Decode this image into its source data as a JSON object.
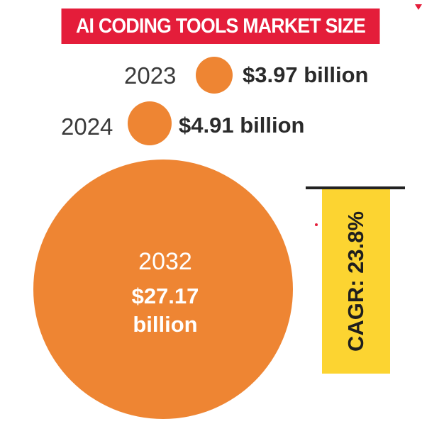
{
  "title": "AI CODING TOOLS MARKET SIZE",
  "chart_data": {
    "type": "bubble",
    "title": "AI CODING TOOLS MARKET SIZE",
    "points": [
      {
        "year": "2023",
        "value": 3.97,
        "label": "$3.97 billion"
      },
      {
        "year": "2024",
        "value": 4.91,
        "label": "$4.91 billion"
      },
      {
        "year": "2032",
        "value": 27.17,
        "label_line1": "$27.17",
        "label_line2": "billion"
      }
    ],
    "annotation": "CAGR: 23.8%"
  },
  "colors": {
    "bubble": "#ee8533",
    "banner": "#e41d3a",
    "cagr_box": "#fcd431"
  }
}
